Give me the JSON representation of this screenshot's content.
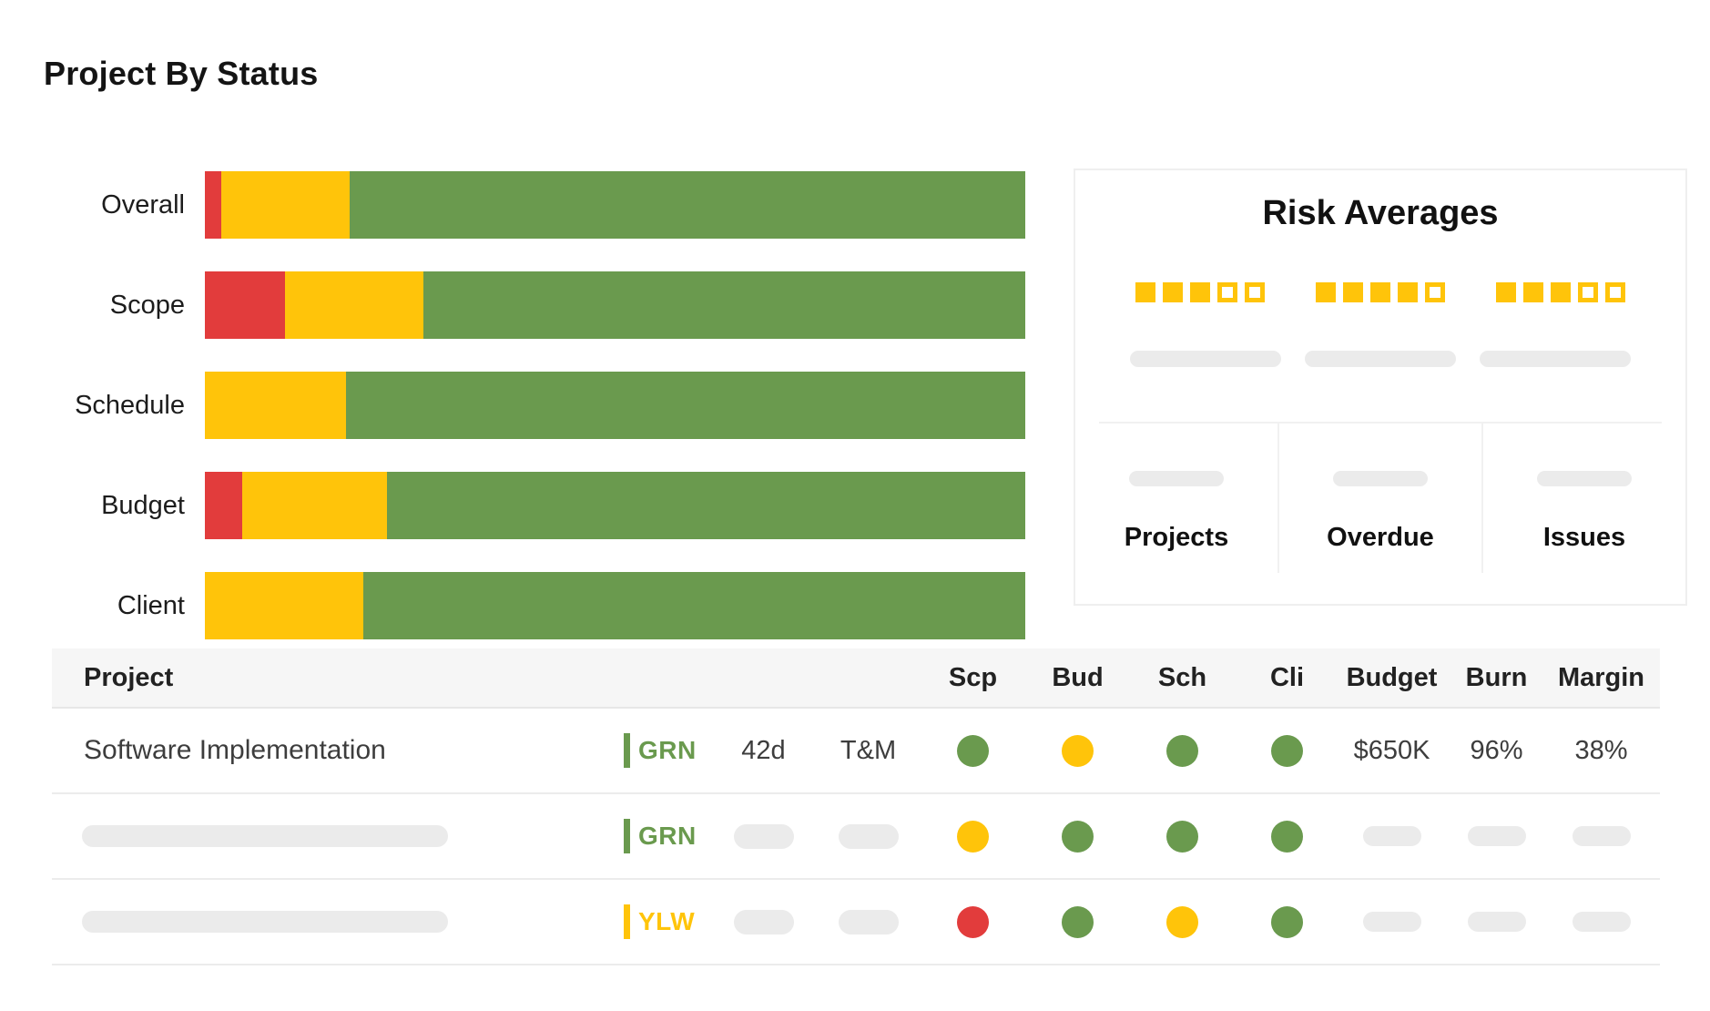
{
  "page": {
    "title": "Project By Status"
  },
  "colors": {
    "green": "#6A9A4E",
    "yellow": "#FFC40A",
    "red": "#E23C3C",
    "placeholder": "#EBEBEB"
  },
  "chart_data": {
    "type": "bar",
    "orientation": "horizontal",
    "stacked": true,
    "title": "Project By Status",
    "categories": [
      "Overall",
      "Scope",
      "Schedule",
      "Budget",
      "Client"
    ],
    "series": [
      {
        "name": "red",
        "color": "#E23C3C",
        "values": [
          2.0,
          9.8,
          0,
          4.6,
          0
        ]
      },
      {
        "name": "yellow",
        "color": "#FFC40A",
        "values": [
          15.6,
          16.8,
          17.2,
          17.6,
          19.3
        ]
      },
      {
        "name": "green",
        "color": "#6A9A4E",
        "values": [
          82.4,
          73.4,
          82.8,
          77.8,
          80.7
        ]
      }
    ],
    "xlim": [
      0,
      100
    ],
    "unit": "percent of projects",
    "xlabel": "",
    "ylabel": "",
    "grid": false,
    "legend": false
  },
  "risk_panel": {
    "title": "Risk Averages",
    "ratings": [
      {
        "filled": 3,
        "total": 5
      },
      {
        "filled": 4,
        "total": 5
      },
      {
        "filled": 3,
        "total": 5
      }
    ],
    "stats": [
      {
        "label": "Projects"
      },
      {
        "label": "Overdue"
      },
      {
        "label": "Issues"
      }
    ]
  },
  "table": {
    "columns": [
      {
        "key": "name",
        "label": "Project"
      },
      {
        "key": "status",
        "label": ""
      },
      {
        "key": "duration",
        "label": ""
      },
      {
        "key": "contract",
        "label": ""
      },
      {
        "key": "scp",
        "label": "Scp"
      },
      {
        "key": "bud",
        "label": "Bud"
      },
      {
        "key": "sch",
        "label": "Sch"
      },
      {
        "key": "cli",
        "label": "Cli"
      },
      {
        "key": "budget",
        "label": "Budget"
      },
      {
        "key": "burn",
        "label": "Burn"
      },
      {
        "key": "margin",
        "label": "Margin"
      }
    ],
    "rows": [
      {
        "cells": {
          "name": {
            "text": "Software Implementation"
          },
          "status": {
            "code": "GRN",
            "color": "green"
          },
          "duration": {
            "text": "42d"
          },
          "contract": {
            "text": "T&M"
          },
          "scp": {
            "dot": "green"
          },
          "bud": {
            "dot": "yellow"
          },
          "sch": {
            "dot": "green"
          },
          "cli": {
            "dot": "green"
          },
          "budget": {
            "text": "$650K"
          },
          "burn": {
            "text": "96%"
          },
          "margin": {
            "text": "38%"
          }
        }
      },
      {
        "cells": {
          "name": {
            "placeholder": true
          },
          "status": {
            "code": "GRN",
            "color": "green"
          },
          "duration": {
            "placeholder": true
          },
          "contract": {
            "placeholder": true
          },
          "scp": {
            "dot": "yellow"
          },
          "bud": {
            "dot": "green"
          },
          "sch": {
            "dot": "green"
          },
          "cli": {
            "dot": "green"
          },
          "budget": {
            "placeholder": true
          },
          "burn": {
            "placeholder": true
          },
          "margin": {
            "placeholder": true
          }
        }
      },
      {
        "cells": {
          "name": {
            "placeholder": true
          },
          "status": {
            "code": "YLW",
            "color": "yellow"
          },
          "duration": {
            "placeholder": true
          },
          "contract": {
            "placeholder": true
          },
          "scp": {
            "dot": "red"
          },
          "bud": {
            "dot": "green"
          },
          "sch": {
            "dot": "yellow"
          },
          "cli": {
            "dot": "green"
          },
          "budget": {
            "placeholder": true
          },
          "burn": {
            "placeholder": true
          },
          "margin": {
            "placeholder": true
          }
        }
      }
    ]
  }
}
